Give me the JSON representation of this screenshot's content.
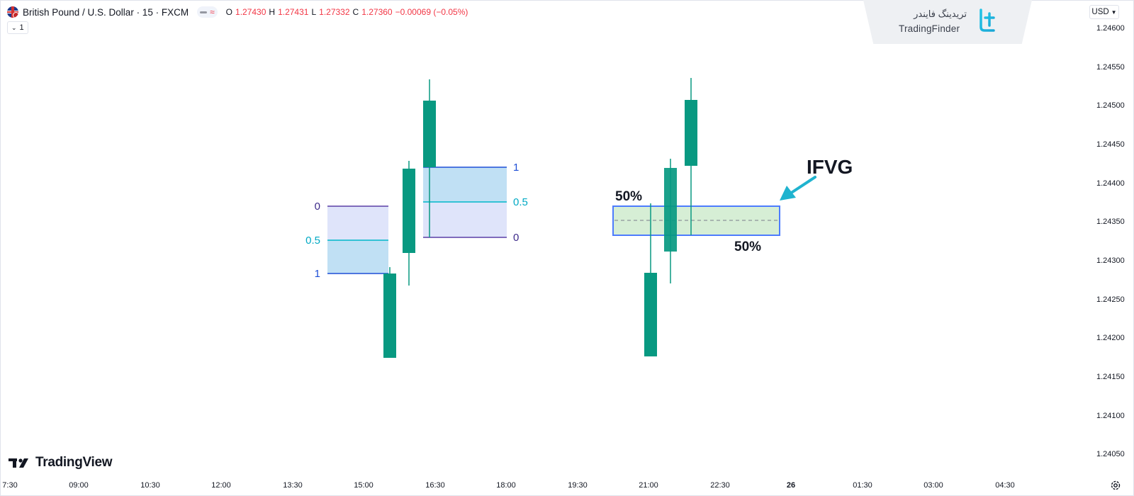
{
  "header": {
    "symbol_title": "British Pound / U.S. Dollar · 15 · FXCM",
    "ohlc": {
      "o_key": "O",
      "o_val": "1.27430",
      "h_key": "H",
      "h_val": "1.27431",
      "l_key": "L",
      "l_val": "1.27332",
      "c_key": "C",
      "c_val": "1.27360",
      "change": "−0.00069 (−0.05%)"
    },
    "interval_badge": "1",
    "pill_wave": "≈"
  },
  "logo": {
    "fa_text": "تریدینگ فایندر",
    "en_text": "TradingFinder"
  },
  "price_scale": {
    "currency": "USD",
    "ticks": [
      "1.24600",
      "1.24550",
      "1.24500",
      "1.24450",
      "1.24400",
      "1.24350",
      "1.24300",
      "1.24250",
      "1.24200",
      "1.24150",
      "1.24100",
      "1.24050"
    ]
  },
  "time_scale": {
    "labels": [
      "7:30",
      "09:00",
      "10:30",
      "12:00",
      "13:30",
      "15:00",
      "16:30",
      "18:00",
      "19:30",
      "21:00",
      "22:30",
      "26",
      "01:30",
      "03:00",
      "04:30"
    ]
  },
  "watermark": {
    "text": "TradingView"
  },
  "left_fib_lower": {
    "top": "0",
    "mid": "0.5",
    "bottom": "1"
  },
  "left_fib_upper": {
    "top": "1",
    "mid": "0.5",
    "bottom": "0"
  },
  "annotations": {
    "pct_left": "50%",
    "pct_right": "50%",
    "ifvg": "IFVG"
  },
  "colors": {
    "candle": "#089981",
    "fib_zone_fill": "#dbe3fb",
    "fib_zone_blue_fill": "#bde0f5",
    "fib_line_violet": "#5b3fa6",
    "fib_line_blue": "#1e4fd6",
    "fib_mid_cyan": "#00bcd4",
    "ifvg_fill": "#d8efd7",
    "ifvg_border": "#4d7cfe",
    "arrow": "#1fb3cf",
    "negative": "#f23645"
  }
}
